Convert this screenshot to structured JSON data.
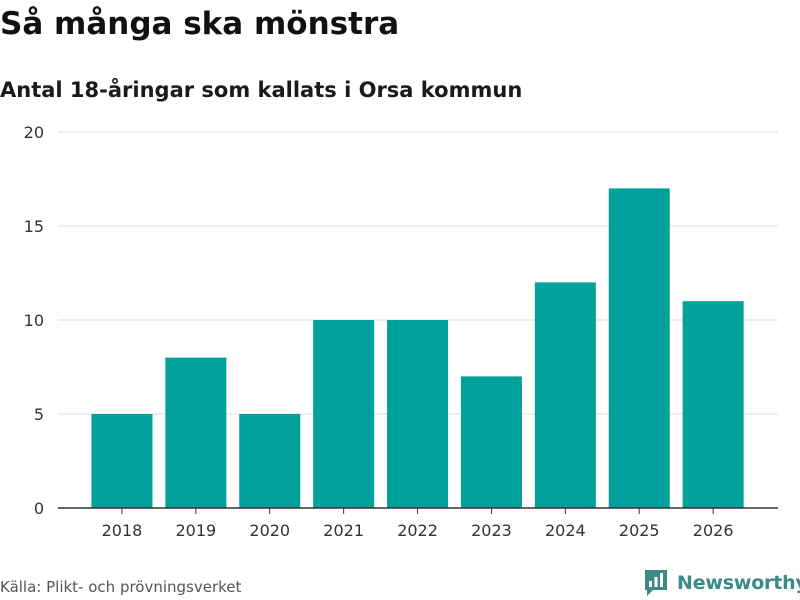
{
  "title": "Så många ska mönstra",
  "subtitle": "Antal 18-åringar som kallats i Orsa kommun",
  "source": "Källa: Plikt- och prövningsverket",
  "brand": {
    "name": "Newsworthy"
  },
  "colors": {
    "bar": "#00a19a",
    "grid": "#dddddd",
    "axis": "#333333",
    "text": "#333333",
    "brand": "#3a8a86"
  },
  "chart_data": {
    "type": "bar",
    "title": "Så många ska mönstra",
    "subtitle": "Antal 18-åringar som kallats i Orsa kommun",
    "xlabel": "",
    "ylabel": "",
    "categories": [
      "2018",
      "2019",
      "2020",
      "2021",
      "2022",
      "2023",
      "2024",
      "2025",
      "2026"
    ],
    "values": [
      5,
      8,
      5,
      10,
      10,
      7,
      12,
      17,
      11
    ],
    "ylim": [
      0,
      20
    ],
    "yticks": [
      0,
      5,
      10,
      15,
      20
    ],
    "grid": true,
    "legend": "none"
  }
}
